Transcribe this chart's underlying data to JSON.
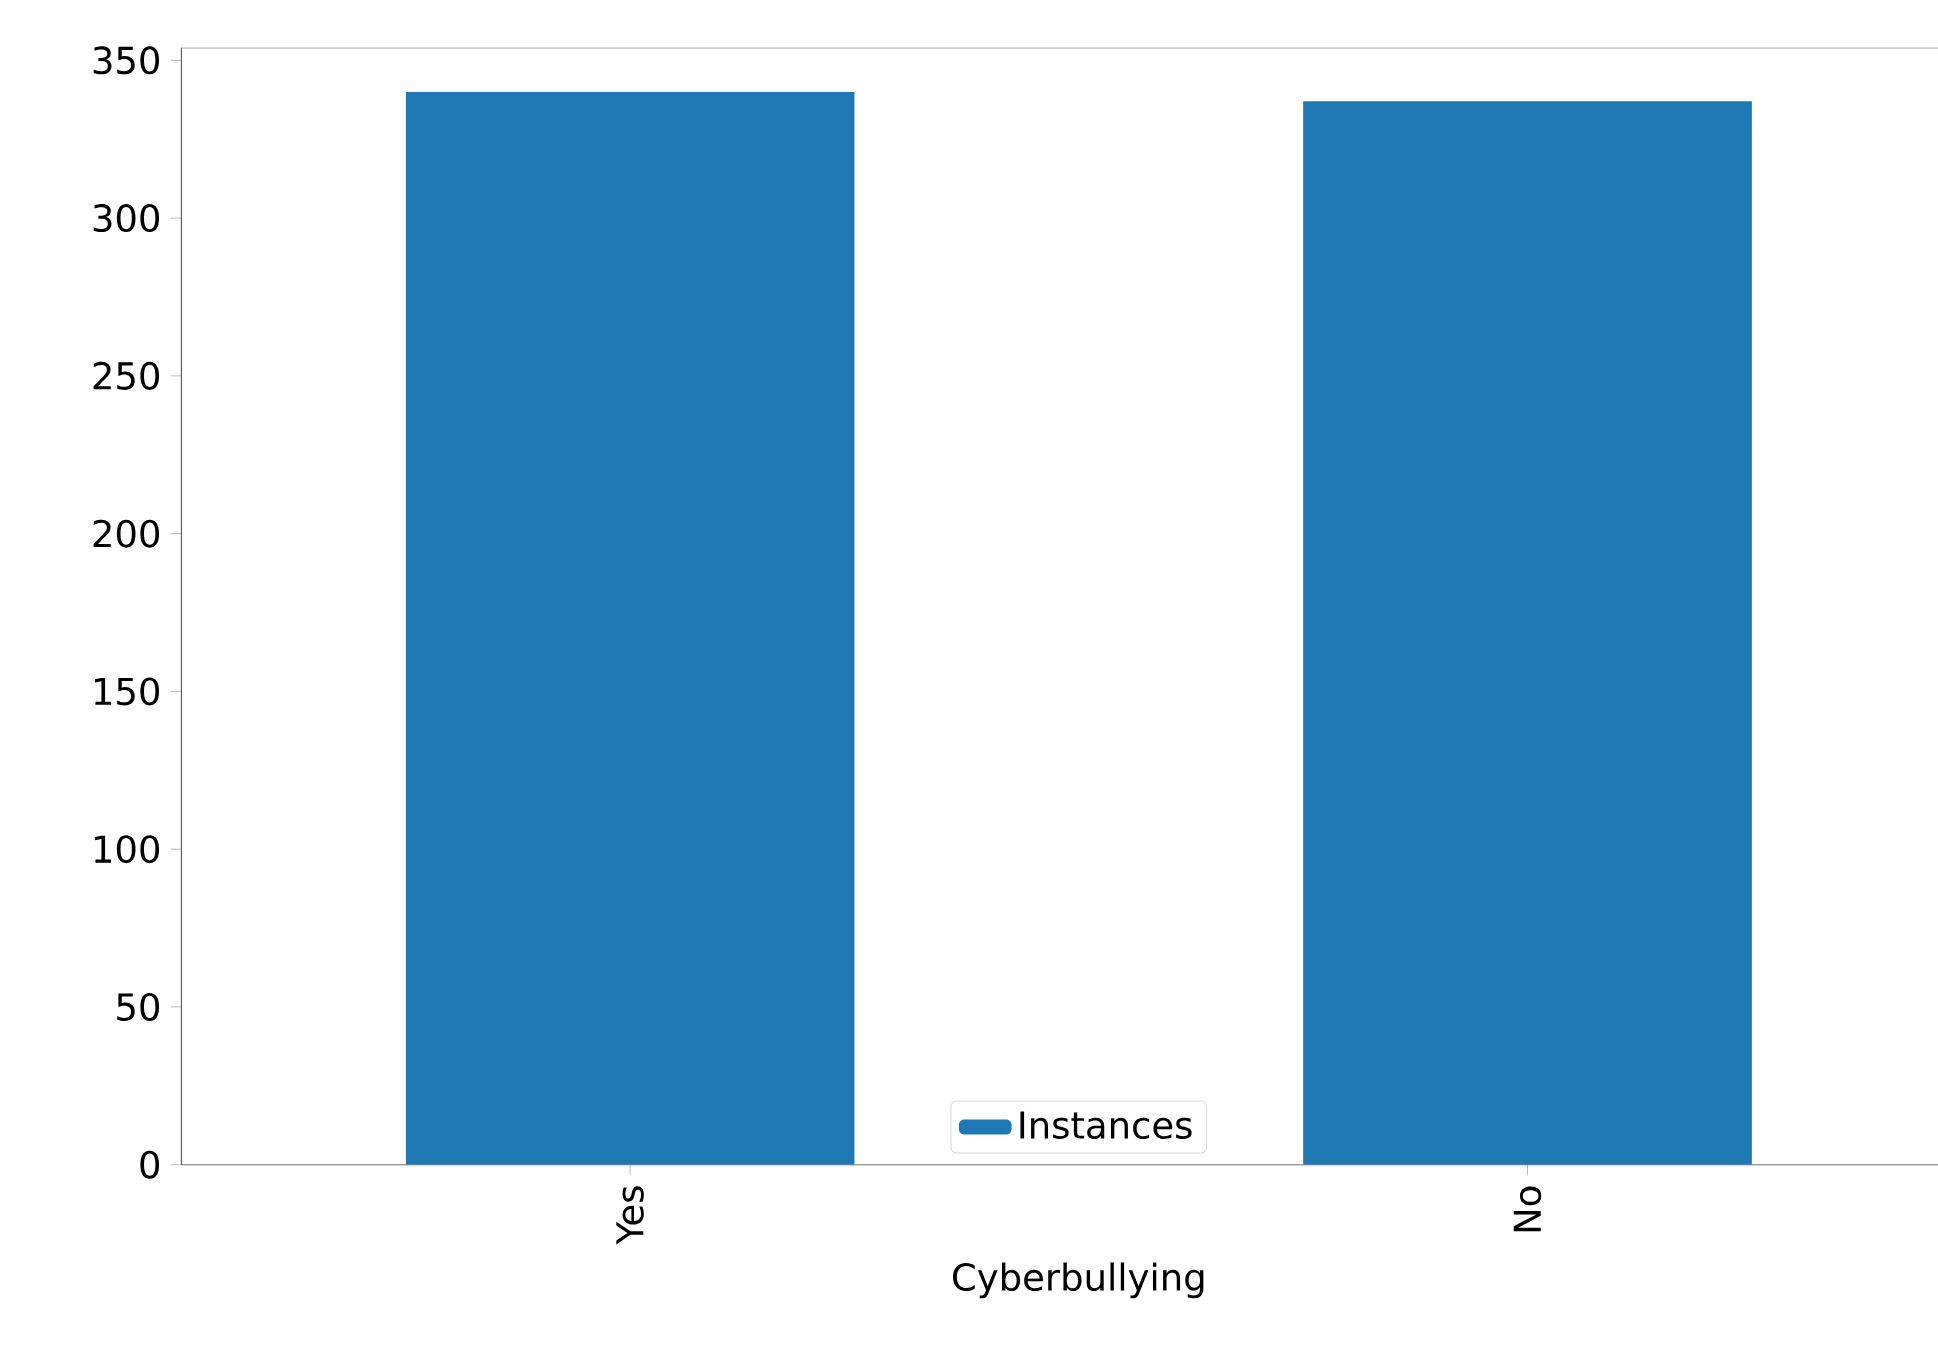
{
  "chart_data": {
    "type": "bar",
    "xlabel": "Cyberbullying",
    "categories": [
      "Yes",
      "No"
    ],
    "series": [
      {
        "name": "Instances",
        "color": "#1f77b4",
        "values": [
          340,
          337
        ]
      }
    ],
    "ylim": [
      0,
      354
    ],
    "yticks": [
      0,
      50,
      100,
      150,
      200,
      250,
      300,
      350
    ],
    "legend": "bottom"
  }
}
